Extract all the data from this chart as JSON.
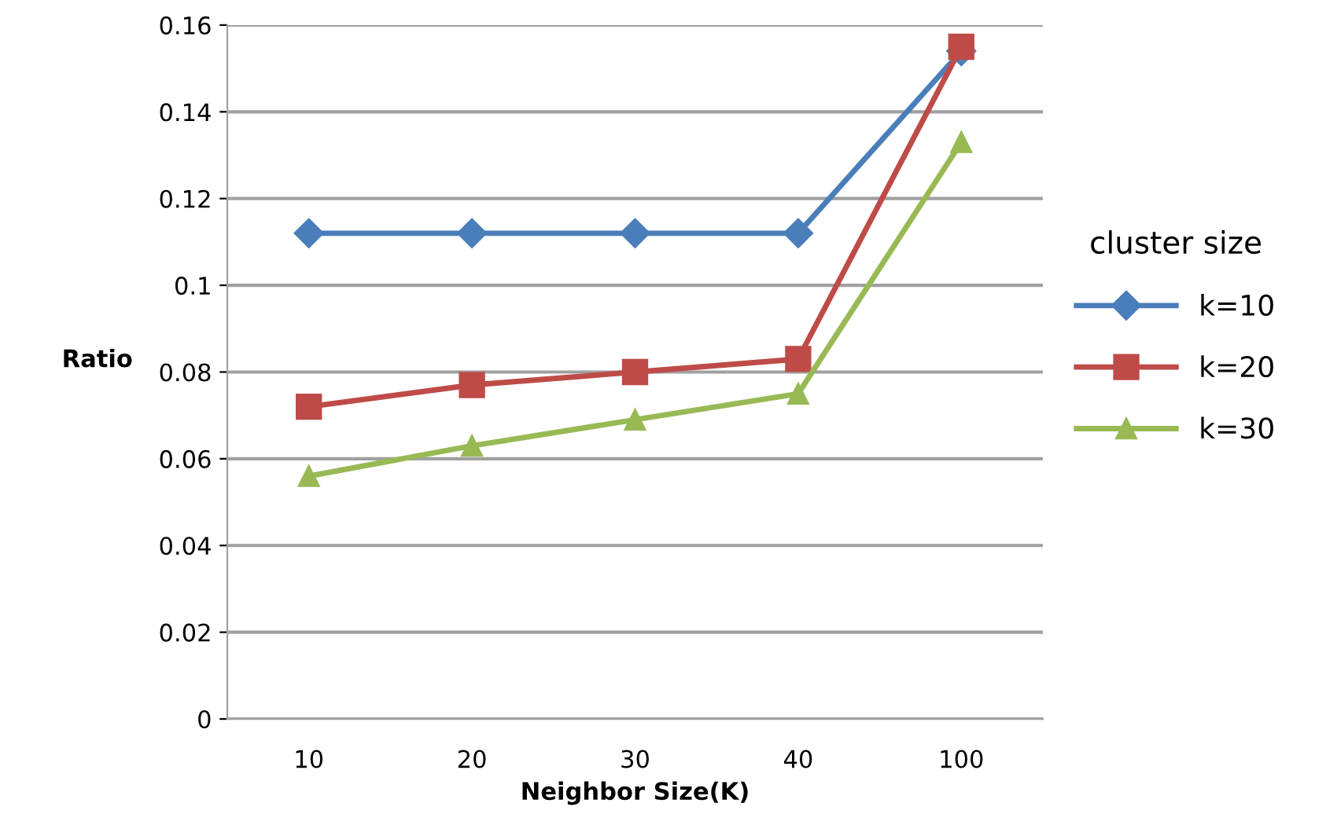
{
  "chart_data": {
    "type": "line",
    "xlabel": "Neighbor Size(K)",
    "ylabel": "Ratio",
    "legend_title": "cluster size",
    "categories": [
      "10",
      "20",
      "30",
      "40",
      "100"
    ],
    "series": [
      {
        "name": "k=10",
        "color": "#4a7ebb",
        "marker": "diamond",
        "values": [
          0.112,
          0.112,
          0.112,
          0.112,
          0.154
        ]
      },
      {
        "name": "k=20",
        "color": "#be4b48",
        "marker": "square",
        "values": [
          0.072,
          0.077,
          0.08,
          0.083,
          0.155
        ]
      },
      {
        "name": "k=30",
        "color": "#98b954",
        "marker": "triangle",
        "values": [
          0.056,
          0.063,
          0.069,
          0.075,
          0.133
        ]
      }
    ],
    "ylim": [
      0,
      0.16
    ],
    "yticks": [
      {
        "value": 0,
        "label": "0"
      },
      0.02,
      0.04,
      0.06,
      0.08,
      {
        "value": 0.1,
        "label": "0.1"
      },
      0.12,
      0.14,
      0.16
    ],
    "grid": "y",
    "legend": "right",
    "line_style": "solid"
  }
}
